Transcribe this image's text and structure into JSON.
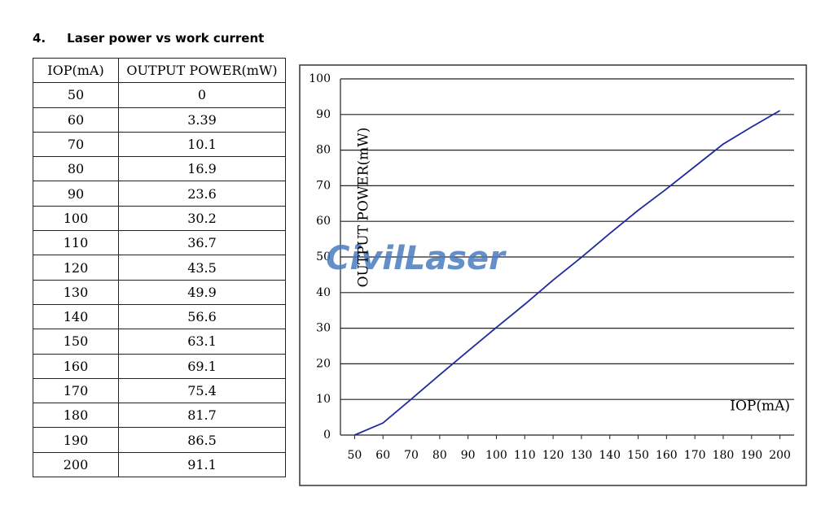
{
  "heading": {
    "number": "4.",
    "title": "Laser power vs work current"
  },
  "table": {
    "header": [
      "IOP(mA)",
      "OUTPUT POWER(mW)"
    ],
    "rows": [
      [
        50,
        0
      ],
      [
        60,
        3.39
      ],
      [
        70,
        10.1
      ],
      [
        80,
        16.9
      ],
      [
        90,
        23.6
      ],
      [
        100,
        30.2
      ],
      [
        110,
        36.7
      ],
      [
        120,
        43.5
      ],
      [
        130,
        49.9
      ],
      [
        140,
        56.6
      ],
      [
        150,
        63.1
      ],
      [
        160,
        69.1
      ],
      [
        170,
        75.4
      ],
      [
        180,
        81.7
      ],
      [
        190,
        86.5
      ],
      [
        200,
        91.1
      ]
    ]
  },
  "chart_data": {
    "type": "line",
    "xlabel": "IOP(mA)",
    "ylabel": "OUTPUT POWER(mW)",
    "watermark": "CivilLaser",
    "x": [
      50,
      60,
      70,
      80,
      90,
      100,
      110,
      120,
      130,
      140,
      150,
      160,
      170,
      180,
      190,
      200
    ],
    "values": [
      0,
      3.39,
      10.1,
      16.9,
      23.6,
      30.2,
      36.7,
      43.5,
      49.9,
      56.6,
      63.1,
      69.1,
      75.4,
      81.7,
      86.5,
      91.1
    ],
    "color": "#1f2a9c",
    "xlim": [
      45,
      205
    ],
    "ylim": [
      0,
      100
    ],
    "xticks": [
      50,
      60,
      70,
      80,
      90,
      100,
      110,
      120,
      130,
      140,
      150,
      160,
      170,
      180,
      190,
      200
    ],
    "yticks": [
      0,
      10,
      20,
      30,
      40,
      50,
      60,
      70,
      80,
      90,
      100
    ],
    "grid": true
  }
}
